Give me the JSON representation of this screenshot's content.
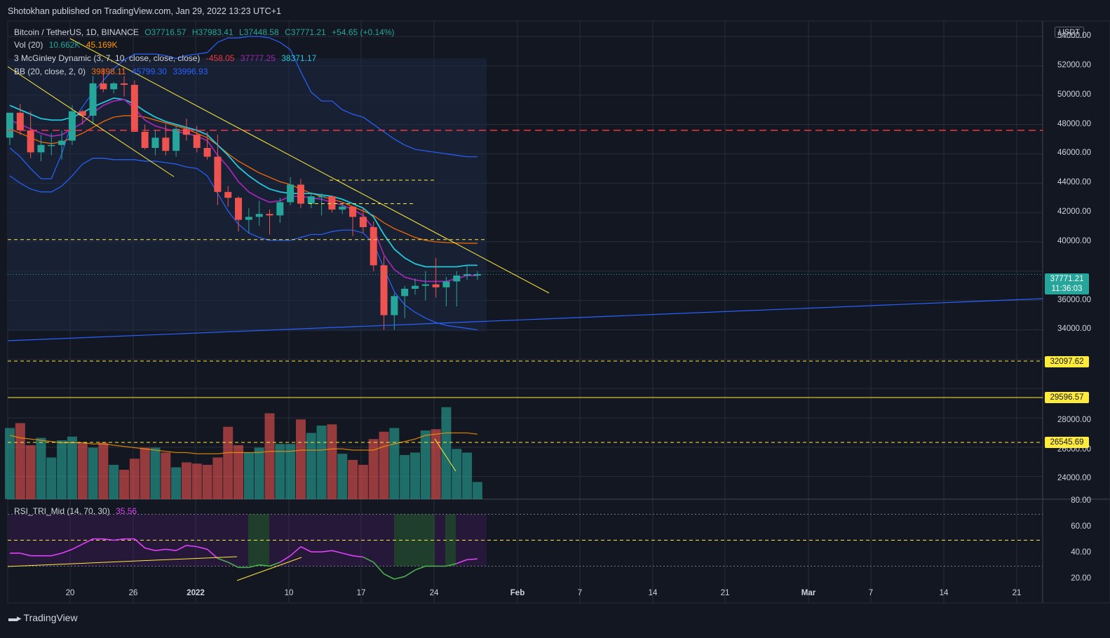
{
  "header": {
    "published_text": "Shotokhan published on TradingView.com, Jan 29, 2022 13:23 UTC+1"
  },
  "legend": {
    "symbol": "Bitcoin / TetherUS, 1D, BINANCE",
    "open": "O37716.57",
    "high": "H37983.41",
    "low": "L37448.58",
    "close": "C37771.21",
    "change": "+54.65 (+0.14%)",
    "vol_label": "Vol (20)",
    "vol_value": "10.662K",
    "vol_ma": "45.169K",
    "mcg_label": "3 McGinley Dynamic (3, 7, 10, close, close, close)",
    "mcg_v1": "-458.05",
    "mcg_v2": "37777.25",
    "mcg_v3": "38371.17",
    "bb_label": "BB (20, close, 2, 0)",
    "bb_v1": "39898.11",
    "bb_v2": "45799.30",
    "bb_v3": "33996.93",
    "rsi_label": "RSI_TRI_Mid (14, 70, 30)",
    "rsi_value": "35.56"
  },
  "price_axis": {
    "currency": "USDT",
    "ticks": [
      "54000.00",
      "52000.00",
      "50000.00",
      "48000.00",
      "46000.00",
      "44000.00",
      "42000.00",
      "40000.00",
      "36000.00",
      "34000.00",
      "28000.00",
      "26000.00",
      "24000.00"
    ],
    "last_price": "37771.21",
    "countdown": "11:36:03",
    "level_tags": [
      "32097.62",
      "29596.57",
      "26545.69"
    ]
  },
  "rsi_axis": {
    "ticks": [
      "80.00",
      "60.00",
      "40.00",
      "20.00"
    ]
  },
  "time_axis": {
    "ticks": [
      "20",
      "26",
      "2022",
      "10",
      "17",
      "24",
      "Feb",
      "7",
      "14",
      "21",
      "Mar",
      "7",
      "14",
      "21"
    ]
  },
  "footer": {
    "brand": "TradingView"
  },
  "colors": {
    "up": "#26a69a",
    "down": "#ef5350",
    "bg": "#131722",
    "grid": "#2a2e39"
  },
  "chart_data": {
    "type": "candlestick",
    "symbol": "Bitcoin / TetherUS",
    "interval": "1D",
    "exchange": "BINANCE",
    "x": [
      "Dec 15",
      "Dec 16",
      "Dec 17",
      "Dec 18",
      "Dec 19",
      "Dec 20",
      "Dec 21",
      "Dec 22",
      "Dec 23",
      "Dec 24",
      "Dec 25",
      "Dec 26",
      "Dec 27",
      "Dec 28",
      "Dec 29",
      "Dec 30",
      "Dec 31",
      "Jan 1",
      "Jan 2",
      "Jan 3",
      "Jan 4",
      "Jan 5",
      "Jan 6",
      "Jan 7",
      "Jan 8",
      "Jan 9",
      "Jan 10",
      "Jan 11",
      "Jan 12",
      "Jan 13",
      "Jan 14",
      "Jan 15",
      "Jan 16",
      "Jan 17",
      "Jan 18",
      "Jan 19",
      "Jan 20",
      "Jan 21",
      "Jan 22",
      "Jan 23",
      "Jan 24",
      "Jan 25",
      "Jan 26",
      "Jan 27",
      "Jan 28",
      "Jan 29"
    ],
    "ohlc": [
      [
        47100,
        48600,
        46600,
        48800
      ],
      [
        48800,
        49400,
        47300,
        47600
      ],
      [
        47600,
        48900,
        45700,
        46100
      ],
      [
        46100,
        47300,
        45500,
        46600
      ],
      [
        46600,
        47400,
        45900,
        46600
      ],
      [
        46600,
        47600,
        45600,
        46900
      ],
      [
        46900,
        49300,
        46600,
        48900
      ],
      [
        48900,
        49000,
        48000,
        48600
      ],
      [
        48600,
        51300,
        48000,
        50800
      ],
      [
        50800,
        51800,
        50200,
        50400
      ],
      [
        50400,
        50900,
        50100,
        50800
      ],
      [
        50800,
        51300,
        49900,
        50700
      ],
      [
        50700,
        51000,
        47500,
        47500
      ],
      [
        47500,
        48000,
        46300,
        46400
      ],
      [
        46400,
        47600,
        45900,
        47100
      ],
      [
        47100,
        48000,
        45900,
        46200
      ],
      [
        46200,
        47900,
        45800,
        47700
      ],
      [
        47700,
        48400,
        46900,
        47300
      ],
      [
        47300,
        47900,
        46100,
        46400
      ],
      [
        46400,
        47500,
        45600,
        45800
      ],
      [
        45800,
        47300,
        42500,
        43400
      ],
      [
        43400,
        43800,
        42400,
        43000
      ],
      [
        43000,
        43100,
        40700,
        41500
      ],
      [
        41500,
        42300,
        40600,
        41700
      ],
      [
        41700,
        42800,
        41100,
        41900
      ],
      [
        41900,
        42200,
        40500,
        41800
      ],
      [
        41800,
        43000,
        41300,
        42700
      ],
      [
        42700,
        44400,
        42500,
        43900
      ],
      [
        43900,
        44300,
        42300,
        42600
      ],
      [
        42600,
        43400,
        42300,
        43100
      ],
      [
        43100,
        43300,
        41800,
        43100
      ],
      [
        43100,
        43100,
        42000,
        42200
      ],
      [
        42200,
        42600,
        41900,
        42400
      ],
      [
        42400,
        42400,
        40400,
        41700
      ],
      [
        41700,
        42300,
        40600,
        41000
      ],
      [
        41000,
        41400,
        38000,
        38400
      ],
      [
        38400,
        39000,
        34000,
        35000
      ],
      [
        35000,
        36500,
        34000,
        36300
      ],
      [
        36300,
        37000,
        34800,
        36800
      ],
      [
        36800,
        37500,
        36400,
        37000
      ],
      [
        37000,
        38000,
        36000,
        37100
      ],
      [
        37100,
        38900,
        36200,
        36900
      ],
      [
        36900,
        37600,
        35600,
        37300
      ],
      [
        37300,
        38000,
        35600,
        37700
      ],
      [
        37700,
        38400,
        37400,
        37800
      ],
      [
        37700,
        38000,
        37400,
        37800
      ]
    ],
    "volume_relative": [
      0.58,
      0.62,
      0.44,
      0.5,
      0.34,
      0.48,
      0.51,
      0.46,
      0.42,
      0.46,
      0.28,
      0.24,
      0.33,
      0.42,
      0.42,
      0.38,
      0.26,
      0.3,
      0.29,
      0.28,
      0.34,
      0.59,
      0.44,
      0.38,
      0.42,
      0.7,
      0.45,
      0.45,
      0.65,
      0.54,
      0.6,
      0.61,
      0.37,
      0.32,
      0.28,
      0.49,
      0.55,
      0.58,
      0.36,
      0.38,
      0.56,
      0.57,
      0.75,
      0.41,
      0.38,
      0.14
    ],
    "horizontal_levels": [
      47600,
      40150,
      32097.62,
      29596.57,
      26545.69
    ],
    "rsi": {
      "value": 35.56,
      "overbought": 70,
      "oversold": 30,
      "ylim": [
        20,
        80
      ]
    },
    "ylim": [
      23000,
      55000
    ]
  }
}
